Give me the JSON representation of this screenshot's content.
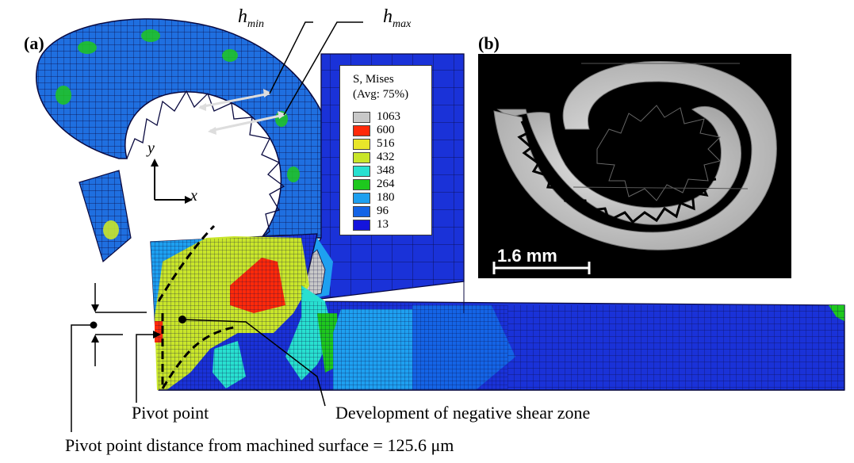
{
  "panels": {
    "a": "(a)",
    "b": "(b)"
  },
  "labels": {
    "h_min_main": "h",
    "h_min_sub": "min",
    "h_max_main": "h",
    "h_max_sub": "max",
    "axis_y": "y",
    "axis_x": "x",
    "pivot_point": "Pivot point",
    "negative_shear": "Development of negative shear zone",
    "pivot_distance": "Pivot point distance from machined surface = 125.6 μm"
  },
  "legend": {
    "title_line1": "S, Mises",
    "title_line2": "(Avg: 75%)",
    "entries": [
      {
        "value": "1063",
        "color": "#c8c8c8"
      },
      {
        "value": "600",
        "color": "#ff2a0a"
      },
      {
        "value": "516",
        "color": "#e8e62a"
      },
      {
        "value": "432",
        "color": "#c9e62a"
      },
      {
        "value": "348",
        "color": "#28e0d0"
      },
      {
        "value": "264",
        "color": "#1ec81e"
      },
      {
        "value": "180",
        "color": "#1ea0f0"
      },
      {
        "value": "96",
        "color": "#1464e6"
      },
      {
        "value": "13",
        "color": "#1414dc"
      }
    ]
  },
  "scale_bar": "1.6 mm"
}
